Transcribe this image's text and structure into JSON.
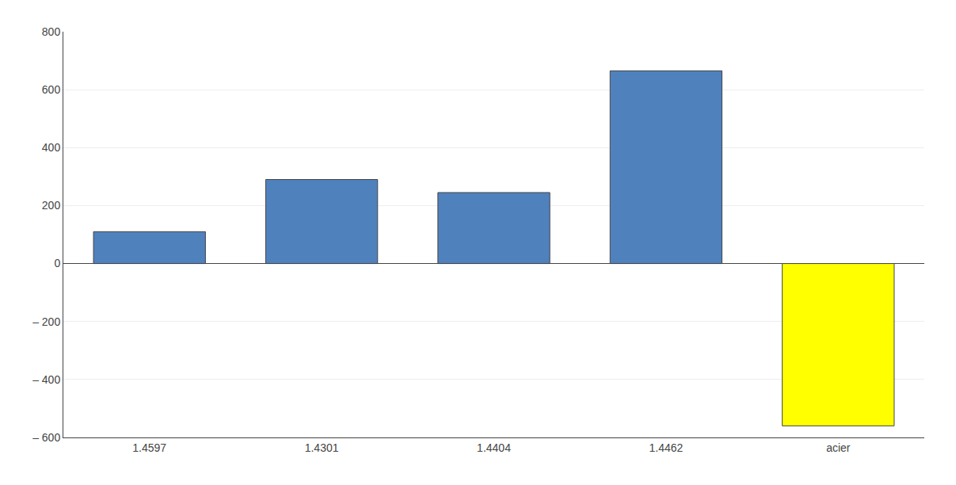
{
  "chart_data": {
    "type": "bar",
    "categories": [
      "1.4597",
      "1.4301",
      "1.4404",
      "1.4462",
      "acier"
    ],
    "values": [
      110,
      290,
      245,
      665,
      -560
    ],
    "colors": [
      "#4F81BD",
      "#4F81BD",
      "#4F81BD",
      "#4F81BD",
      "#FFFF00"
    ],
    "ylim": [
      -600,
      800
    ],
    "yticks": [
      {
        "value": -600,
        "label": "– 600"
      },
      {
        "value": -400,
        "label": "– 400"
      },
      {
        "value": -200,
        "label": "– 200"
      },
      0,
      200,
      400,
      600,
      800
    ],
    "grid": true
  }
}
